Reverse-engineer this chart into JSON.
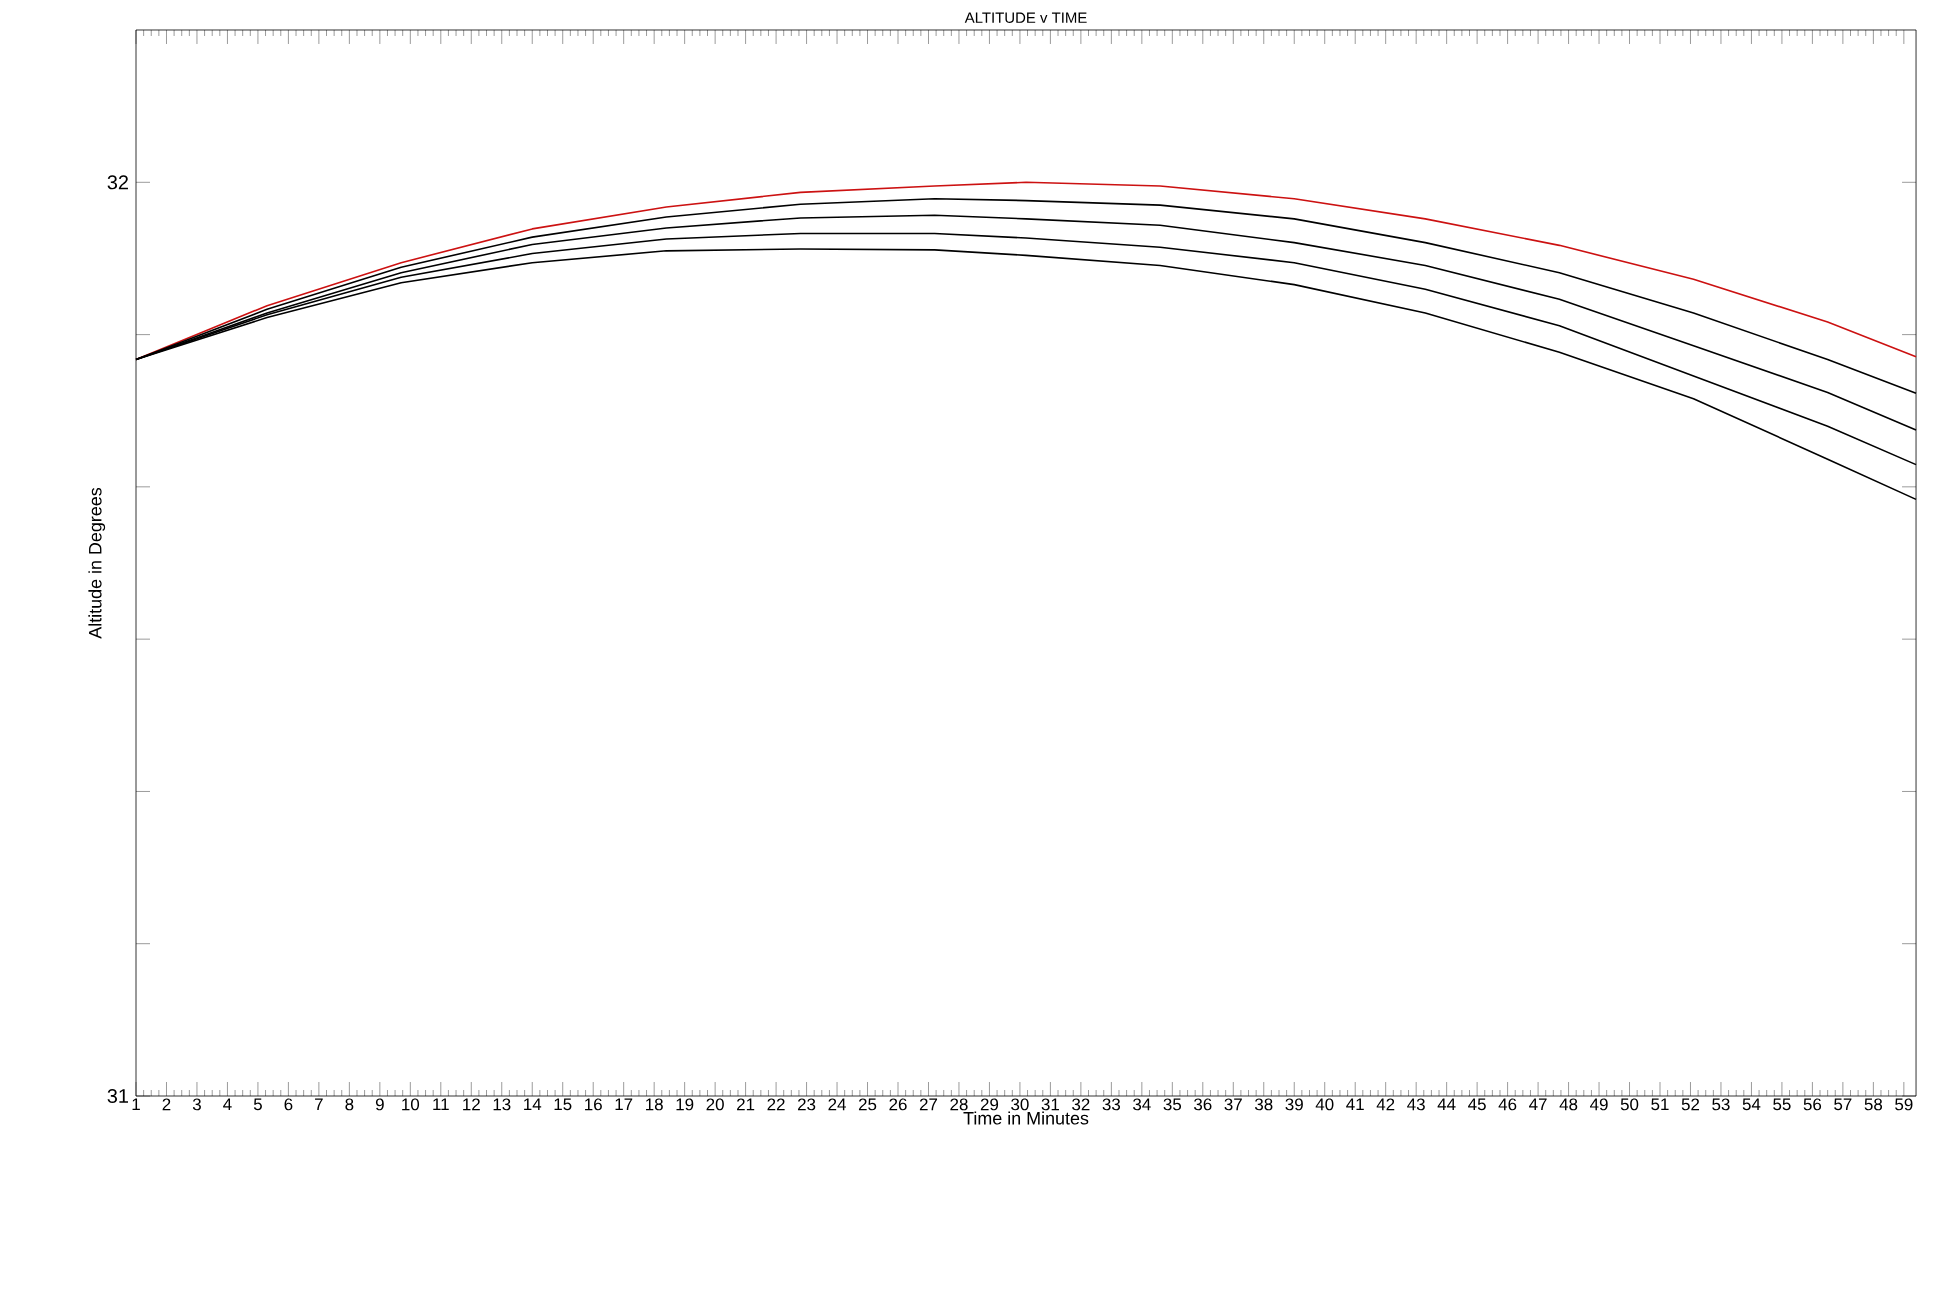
{
  "chart_data": {
    "type": "line",
    "title": "ALTITUDE v TIME",
    "xlabel": "Time in Minutes",
    "ylabel": "Altitude in Degrees",
    "xlim": [
      1,
      59.4
    ],
    "xticks": [
      1,
      2,
      3,
      4,
      5,
      6,
      7,
      8,
      9,
      10,
      11,
      12,
      13,
      14,
      15,
      16,
      17,
      18,
      19,
      20,
      21,
      22,
      23,
      24,
      25,
      26,
      27,
      28,
      29,
      30,
      31,
      32,
      33,
      34,
      35,
      36,
      37,
      38,
      39,
      40,
      41,
      42,
      43,
      44,
      45,
      46,
      47,
      48,
      49,
      50,
      51,
      52,
      53,
      54,
      55,
      56,
      57,
      58,
      59
    ],
    "ylim": [
      31,
      32.1667
    ],
    "yticks": [
      31,
      {
        "value": 31.1667,
        "label": null
      },
      {
        "value": 31.3333,
        "label": null
      },
      {
        "value": 31.5,
        "label": null
      },
      {
        "value": 31.6667,
        "label": null
      },
      {
        "value": 31.8333,
        "label": null
      },
      32
    ],
    "x": [
      1,
      5.3,
      9.7,
      14,
      18.4,
      22.8,
      27.2,
      30.2,
      34.6,
      39,
      43.3,
      47.7,
      52.1,
      56.5,
      59.4
    ],
    "series": [
      {
        "color": "#cc1111",
        "values": [
          31.806,
          31.865,
          31.912,
          31.949,
          31.973,
          31.989,
          31.996,
          32.0,
          31.996,
          31.982,
          31.96,
          31.931,
          31.894,
          31.847,
          31.809
        ]
      },
      {
        "color": "#000000",
        "values": [
          31.806,
          31.861,
          31.907,
          31.94,
          31.962,
          31.976,
          31.982,
          31.98,
          31.975,
          31.96,
          31.934,
          31.901,
          31.857,
          31.806,
          31.769
        ]
      },
      {
        "color": "#000000",
        "values": [
          31.806,
          31.857,
          31.901,
          31.932,
          31.95,
          31.961,
          31.964,
          31.96,
          31.953,
          31.934,
          31.909,
          31.872,
          31.821,
          31.77,
          31.729
        ]
      },
      {
        "color": "#000000",
        "values": [
          31.806,
          31.855,
          31.896,
          31.922,
          31.938,
          31.944,
          31.944,
          31.939,
          31.929,
          31.912,
          31.883,
          31.843,
          31.788,
          31.733,
          31.691
        ]
      },
      {
        "color": "#000000",
        "values": [
          31.806,
          31.852,
          31.89,
          31.912,
          31.925,
          31.927,
          31.926,
          31.92,
          31.909,
          31.888,
          31.857,
          31.814,
          31.763,
          31.697,
          31.653
        ]
      }
    ]
  }
}
